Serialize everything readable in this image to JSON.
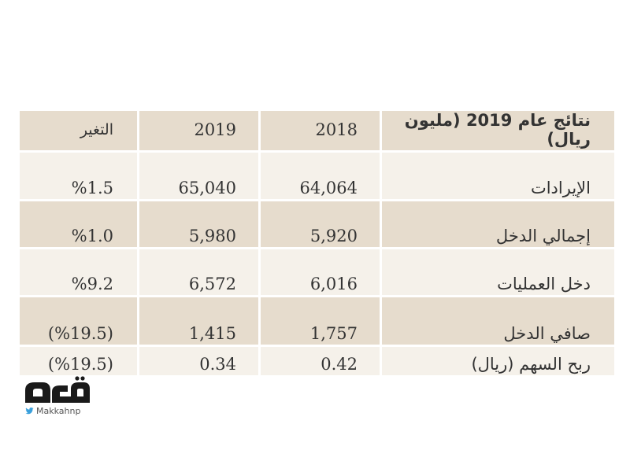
{
  "table": {
    "header": {
      "label": "نتائج عام 2019 (مليون ريال)",
      "col_2018": "2018",
      "col_2019": "2019",
      "col_change": "التغير"
    },
    "rows": [
      {
        "label": "الإيرادات",
        "v2018": "64,064",
        "v2019": "65,040",
        "change": "%1.5"
      },
      {
        "label": "إجمالي الدخل",
        "v2018": "5,920",
        "v2019": "5,980",
        "change": "%1.0"
      },
      {
        "label": "دخل العمليات",
        "v2018": "6,016",
        "v2019": "6,572",
        "change": "%9.2"
      },
      {
        "label": "صافي الدخل",
        "v2018": "1,757",
        "v2019": "1,415",
        "change": "(%19.5)"
      },
      {
        "label": "ربح السهم (ريال)",
        "v2018": "0.42",
        "v2019": "0.34",
        "change": "(%19.5)"
      }
    ]
  },
  "logo": {
    "wordmark": "مكة",
    "handle": "Makkahnp",
    "brand_color": "#1a1a1a",
    "twitter_color": "#3aa0dc",
    "icon": "twitter-bird-icon"
  },
  "colors": {
    "row_dark": "#e6dccd",
    "row_light": "#f5f1ea",
    "text": "#333333"
  }
}
